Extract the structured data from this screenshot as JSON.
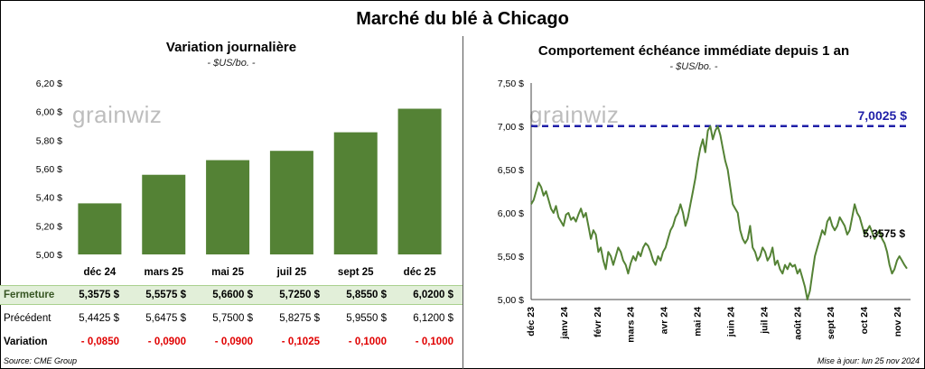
{
  "title": "Marché du blé à Chicago",
  "colors": {
    "bar": "#548235",
    "line": "#548235",
    "ref_line": "#1f1fa8",
    "negative": "#e00000",
    "close_row_bg": "#e2efd9"
  },
  "watermark": "grainwiz",
  "left_panel": {
    "subtitle": "Variation journalière",
    "units": "- $US/bo. -"
  },
  "right_panel": {
    "subtitle": "Comportement échéance immédiate depuis 1 an",
    "units": "- $US/bo. -",
    "ref_label": "7,0025 $",
    "last_label": "5,3575 $"
  },
  "table": {
    "rows": [
      {
        "label": "Fermeture",
        "values": [
          "5,3575 $",
          "5,5575 $",
          "5,6600 $",
          "5,7250 $",
          "5,8550 $",
          "6,0200 $"
        ]
      },
      {
        "label": "Précédent",
        "values": [
          "5,4425 $",
          "5,6475 $",
          "5,7500 $",
          "5,8275 $",
          "5,9550 $",
          "6,1200 $"
        ]
      },
      {
        "label": "Variation",
        "values": [
          "- 0,0850",
          "- 0,0900",
          "- 0,0900",
          "- 0,1025",
          "- 0,1000",
          "- 0,1000"
        ]
      }
    ]
  },
  "footer": {
    "source": "Source: CME Group",
    "updated": "Mise à jour: lun 25 nov 2024"
  },
  "chart_data": [
    {
      "type": "bar",
      "title": "Variation journalière",
      "categories": [
        "déc 24",
        "mars 25",
        "mai 25",
        "juil 25",
        "sept 25",
        "déc 25"
      ],
      "values": [
        5.3575,
        5.5575,
        5.66,
        5.725,
        5.855,
        6.02
      ],
      "ylim": [
        5.0,
        6.2
      ],
      "yticks": [
        "5,00 $",
        "5,20 $",
        "5,40 $",
        "5,60 $",
        "5,80 $",
        "6,00 $",
        "6,20 $"
      ],
      "grid": false
    },
    {
      "type": "line",
      "title": "Comportement échéance immédiate depuis 1 an",
      "ylim": [
        5.0,
        7.5
      ],
      "yticks": [
        "5,00 $",
        "5,50 $",
        "6,00 $",
        "6,50 $",
        "7,00 $",
        "7,50 $"
      ],
      "xticks": [
        "déc 23",
        "janv 24",
        "févr 24",
        "mars 24",
        "avr 24",
        "mai 24",
        "juin 24",
        "juil 24",
        "août 24",
        "sept 24",
        "oct 24",
        "nov 24"
      ],
      "reference_line": 7.0025,
      "last_value": 5.3575,
      "values": [
        6.1,
        6.15,
        6.25,
        6.35,
        6.3,
        6.2,
        6.25,
        6.15,
        6.05,
        6.0,
        6.08,
        5.95,
        5.9,
        5.85,
        5.98,
        6.0,
        5.92,
        5.95,
        5.9,
        5.98,
        6.05,
        5.95,
        6.0,
        5.85,
        5.7,
        5.8,
        5.75,
        5.55,
        5.6,
        5.45,
        5.35,
        5.55,
        5.5,
        5.4,
        5.5,
        5.6,
        5.55,
        5.45,
        5.4,
        5.3,
        5.42,
        5.5,
        5.45,
        5.55,
        5.5,
        5.6,
        5.65,
        5.62,
        5.55,
        5.45,
        5.4,
        5.5,
        5.45,
        5.55,
        5.6,
        5.7,
        5.8,
        5.85,
        5.95,
        6.0,
        6.1,
        6.0,
        5.85,
        5.95,
        6.1,
        6.25,
        6.4,
        6.6,
        6.75,
        6.85,
        6.7,
        6.95,
        7.0,
        6.85,
        6.95,
        7.0,
        6.9,
        6.75,
        6.6,
        6.5,
        6.3,
        6.1,
        6.05,
        6.0,
        5.8,
        5.7,
        5.65,
        5.7,
        5.85,
        5.6,
        5.55,
        5.45,
        5.5,
        5.6,
        5.55,
        5.45,
        5.5,
        5.6,
        5.4,
        5.45,
        5.35,
        5.3,
        5.4,
        5.35,
        5.42,
        5.38,
        5.4,
        5.3,
        5.35,
        5.25,
        5.15,
        5.0,
        5.1,
        5.3,
        5.5,
        5.6,
        5.7,
        5.8,
        5.75,
        5.9,
        5.95,
        5.85,
        5.8,
        5.85,
        5.95,
        5.9,
        5.85,
        5.75,
        5.8,
        5.95,
        6.1,
        6.0,
        5.95,
        5.85,
        5.75,
        5.8,
        5.85,
        5.78,
        5.7,
        5.75,
        5.8,
        5.7,
        5.65,
        5.55,
        5.4,
        5.3,
        5.35,
        5.45,
        5.5,
        5.45,
        5.4,
        5.3575
      ]
    }
  ]
}
